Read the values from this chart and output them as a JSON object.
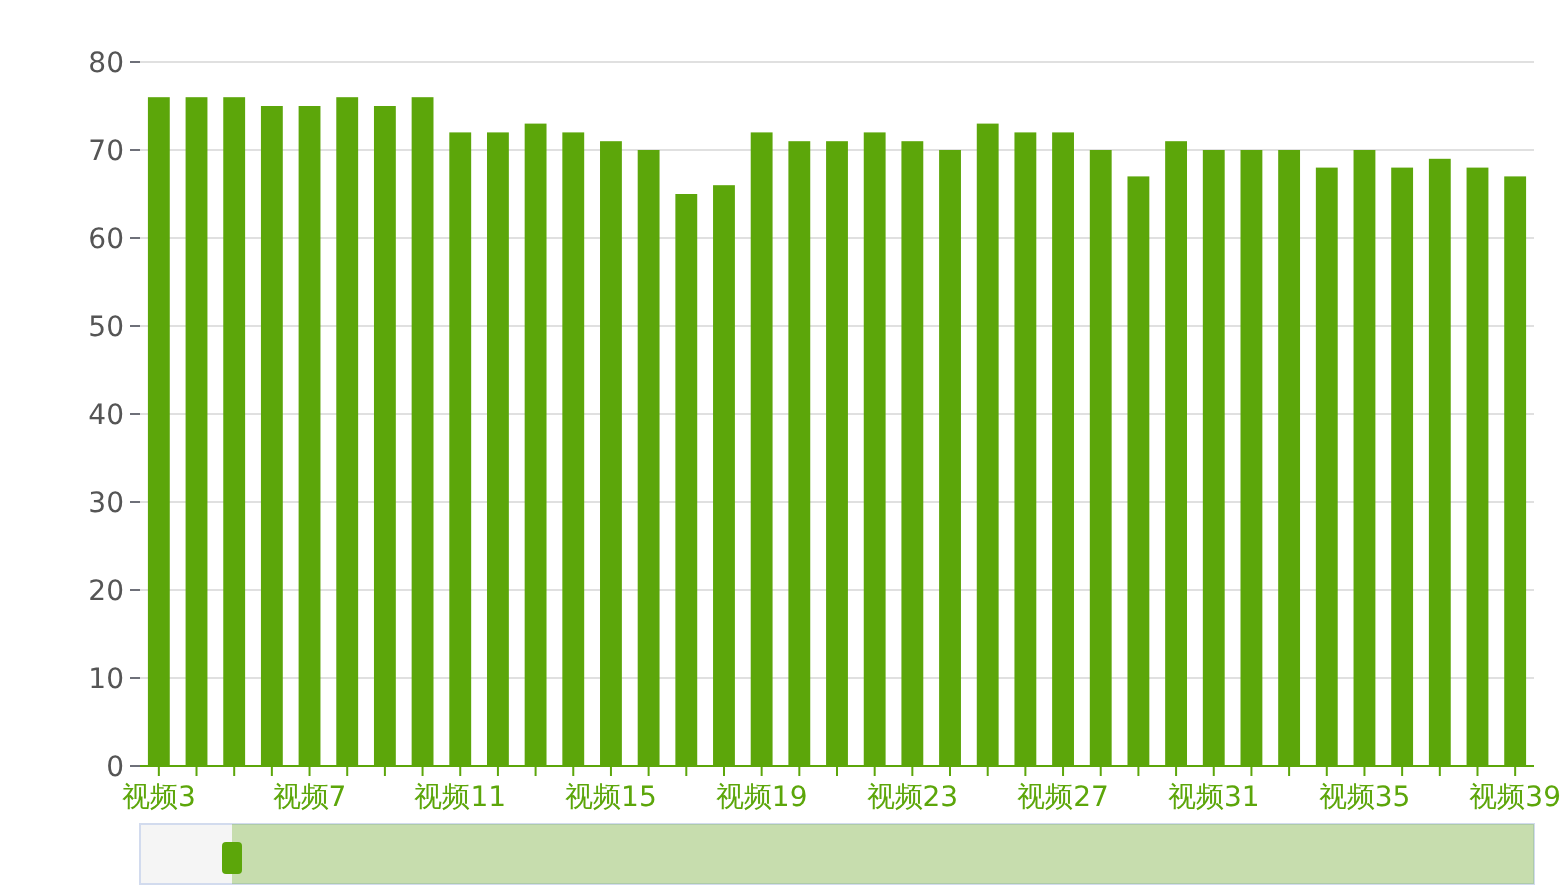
{
  "chart_data": {
    "type": "bar",
    "categories": [
      "视频3",
      null,
      null,
      null,
      "视频7",
      null,
      null,
      null,
      "视频11",
      null,
      null,
      null,
      "视频15",
      null,
      null,
      null,
      "视频19",
      null,
      null,
      null,
      "视频23",
      null,
      null,
      null,
      "视频27",
      null,
      null,
      null,
      "视频31",
      null,
      null,
      null,
      "视频35",
      null,
      null,
      null,
      "视频39"
    ],
    "values": [
      76,
      76,
      76,
      75,
      75,
      76,
      75,
      76,
      72,
      72,
      73,
      72,
      71,
      70,
      65,
      66,
      72,
      71,
      71,
      72,
      71,
      70,
      73,
      72,
      72,
      70,
      67,
      71,
      70,
      70,
      70,
      68,
      70,
      68,
      69,
      68,
      67
    ],
    "color": "#5ca60a",
    "ylim": [
      0,
      80
    ],
    "yticks": [
      0,
      10,
      20,
      30,
      40,
      50,
      60,
      70,
      80
    ],
    "grid": "y"
  }
}
